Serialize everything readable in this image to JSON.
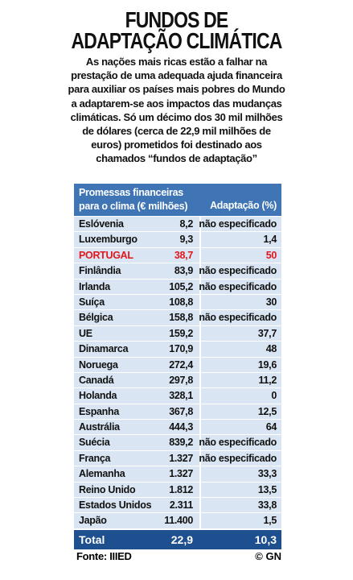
{
  "header": {
    "title": [
      "FUNDOS DE",
      "ADAPTAÇÃO CLIMÁTICA"
    ],
    "intro": [
      "As nações mais ricas estão a falhar na",
      "prestação de uma adequada ajuda financeira",
      "para auxiliar os países mais pobres do Mundo",
      "a adaptarem-se aos impactos das mudanças",
      "climáticas. Só um décimo dos 30 mil milhões",
      "de dólares (cerca de 22,9 mil milhões de",
      "euros) prometidos foi destinado aos",
      "chamados “fundos de adaptação”"
    ]
  },
  "table": {
    "columns": [
      [
        "Promessas financeiras",
        "para o clima (€ milhões)"
      ],
      "Adaptação (%)"
    ],
    "rows": [
      [
        "Eslóvenia",
        "8,2",
        "não especificado"
      ],
      [
        "Luxemburgo",
        "9,3",
        "1,4"
      ],
      [
        "PORTUGAL",
        "38,7",
        "50"
      ],
      [
        "Finlândia",
        "83,9",
        "não especificado"
      ],
      [
        "Irlanda",
        "105,2",
        "não especificado"
      ],
      [
        "Suíça",
        "108,8",
        "30"
      ],
      [
        "Bélgica",
        "158,8",
        "não especificado"
      ],
      [
        "UE",
        "159,2",
        "37,7"
      ],
      [
        "Dinamarca",
        "170,9",
        "48"
      ],
      [
        "Noruega",
        "272,4",
        "19,6"
      ],
      [
        "Canadá",
        "297,8",
        "11,2"
      ],
      [
        "Holanda",
        "328,1",
        "0"
      ],
      [
        "Espanha",
        "367,8",
        "12,5"
      ],
      [
        "Austrália",
        "444,3",
        "64"
      ],
      [
        "Suécia",
        "839,2",
        "não especificado"
      ],
      [
        "França",
        "1.327",
        "não especificado"
      ],
      [
        "Alemanha",
        "1.327",
        "33,3"
      ],
      [
        "Reino Unido",
        "1.812",
        "13,5"
      ],
      [
        "Estados Unidos",
        "2.311",
        "33,8"
      ],
      [
        "Japão",
        "11.400",
        "1,5"
      ]
    ],
    "highlight_row": 2,
    "total": [
      "Total",
      "22,9",
      "10,3"
    ]
  },
  "footer": {
    "source": "Fonte: IIIED",
    "credit": "© GN"
  }
}
